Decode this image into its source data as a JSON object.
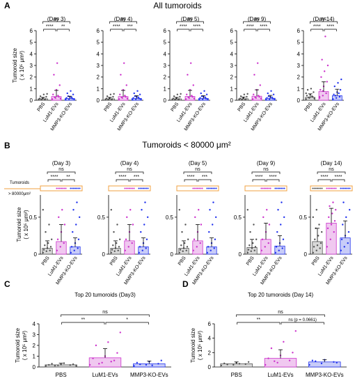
{
  "figure": {
    "panelA": {
      "letter": "A",
      "title": "All tumoroids"
    },
    "panelB": {
      "letter": "B",
      "title": "Tumoroids < 80000 μm²"
    },
    "panelC": {
      "letter": "C"
    },
    "panelD": {
      "letter": "D"
    }
  },
  "colors": {
    "PBS": "#555555",
    "LuM1-EVs": "#cc33cc",
    "MMP3-KO-EVs": "#2233ee",
    "tumoroid_band": "#f0a040"
  },
  "chart_data": [
    {
      "id": "A",
      "type": "scatter",
      "title": "(Day 3)",
      "ylabel": "Tumoroid size\n( x 10⁵ μm²)",
      "ylim": [
        0,
        6
      ],
      "yticks": [
        0,
        1,
        2,
        3,
        4,
        5,
        6
      ],
      "categories": [
        "PBS",
        "LuM1-EVs",
        "MMP3-KO-EVs"
      ],
      "bar_values": [
        0.12,
        0.32,
        0.15
      ],
      "error_upper": [
        0.25,
        0.85,
        0.35
      ],
      "points": [
        [
          0.05,
          0.1,
          0.1,
          0.15,
          0.2,
          0.3,
          0.35,
          0.5,
          0.55,
          0.05,
          0.08
        ],
        [
          0.1,
          0.2,
          0.3,
          0.5,
          0.9,
          1.3,
          2.2,
          3.2,
          0.15,
          0.25,
          0.4
        ],
        [
          0.05,
          0.1,
          0.15,
          0.2,
          0.3,
          0.5,
          0.6,
          0.8,
          0.1,
          0.35,
          0.25
        ]
      ],
      "brackets": [
        {
          "from": 0,
          "to": 1,
          "label": "****"
        },
        {
          "from": 1,
          "to": 2,
          "label": "**"
        },
        {
          "from": 0,
          "to": 2,
          "label": "ns"
        }
      ]
    },
    {
      "id": "A",
      "type": "scatter",
      "title": "(Day 4)",
      "ylim": [
        0,
        6
      ],
      "yticks": [
        0,
        1,
        2,
        3,
        4,
        5,
        6
      ],
      "categories": [
        "PBS",
        "LuM1-EVs",
        "MMP3-KO-EVs"
      ],
      "bar_values": [
        0.12,
        0.32,
        0.16
      ],
      "error_upper": [
        0.25,
        0.85,
        0.4
      ],
      "points": [
        [
          0.05,
          0.1,
          0.1,
          0.15,
          0.2,
          0.3,
          0.35,
          0.5,
          0.55,
          0.05,
          0.08
        ],
        [
          0.1,
          0.2,
          0.3,
          0.5,
          0.9,
          1.3,
          2.2,
          3.2,
          0.15,
          0.25,
          0.4
        ],
        [
          0.05,
          0.1,
          0.15,
          0.2,
          0.3,
          0.5,
          0.6,
          0.8,
          0.1,
          0.35,
          0.25
        ]
      ],
      "brackets": [
        {
          "from": 0,
          "to": 1,
          "label": "****"
        },
        {
          "from": 1,
          "to": 2,
          "label": "***"
        },
        {
          "from": 0,
          "to": 2,
          "label": "ns"
        }
      ]
    },
    {
      "id": "A",
      "type": "scatter",
      "title": "(Day 5)",
      "ylim": [
        0,
        6
      ],
      "yticks": [
        0,
        1,
        2,
        3,
        4,
        5,
        6
      ],
      "categories": [
        "PBS",
        "LuM1-EVs",
        "MMP3-KO-EVs"
      ],
      "bar_values": [
        0.12,
        0.33,
        0.16
      ],
      "error_upper": [
        0.25,
        0.85,
        0.4
      ],
      "points": [
        [
          0.05,
          0.1,
          0.1,
          0.15,
          0.2,
          0.3,
          0.35,
          0.5,
          0.55,
          0.05,
          0.08
        ],
        [
          0.1,
          0.2,
          0.3,
          0.5,
          0.9,
          1.3,
          2.2,
          3.2,
          0.15,
          0.25,
          0.4
        ],
        [
          0.05,
          0.1,
          0.15,
          0.2,
          0.3,
          0.5,
          0.6,
          0.8,
          0.1,
          0.35,
          0.25
        ]
      ],
      "brackets": [
        {
          "from": 0,
          "to": 1,
          "label": "****"
        },
        {
          "from": 1,
          "to": 2,
          "label": "****"
        },
        {
          "from": 0,
          "to": 2,
          "label": "ns"
        }
      ]
    },
    {
      "id": "A",
      "type": "scatter",
      "title": "(Day 9)",
      "ylim": [
        0,
        6
      ],
      "yticks": [
        0,
        1,
        2,
        3,
        4,
        5,
        6
      ],
      "categories": [
        "PBS",
        "LuM1-EVs",
        "MMP3-KO-EVs"
      ],
      "bar_values": [
        0.13,
        0.35,
        0.17
      ],
      "error_upper": [
        0.28,
        0.9,
        0.42
      ],
      "points": [
        [
          0.05,
          0.1,
          0.1,
          0.15,
          0.2,
          0.3,
          0.35,
          0.5,
          0.55,
          0.05,
          0.08
        ],
        [
          0.1,
          0.2,
          0.3,
          0.5,
          0.9,
          1.3,
          2.2,
          3.2,
          0.15,
          0.25,
          0.4
        ],
        [
          0.05,
          0.1,
          0.15,
          0.2,
          0.3,
          0.5,
          0.6,
          0.8,
          0.1,
          0.35,
          0.25
        ]
      ],
      "brackets": [
        {
          "from": 0,
          "to": 1,
          "label": "****"
        },
        {
          "from": 1,
          "to": 2,
          "label": "****"
        },
        {
          "from": 0,
          "to": 2,
          "label": "ns"
        }
      ]
    },
    {
      "id": "A",
      "type": "scatter",
      "title": "(Day 14)",
      "ylim": [
        0,
        6
      ],
      "yticks": [
        0,
        1,
        2,
        3,
        4,
        5,
        6
      ],
      "categories": [
        "PBS",
        "LuM1-EVs",
        "MMP3-KO-EVs"
      ],
      "bar_values": [
        0.25,
        0.75,
        0.4
      ],
      "error_upper": [
        0.55,
        1.6,
        0.95
      ],
      "points": [
        [
          0.1,
          0.2,
          0.3,
          0.4,
          0.5,
          0.7,
          0.9,
          1.0,
          0.15,
          0.25,
          0.35,
          0.6
        ],
        [
          0.2,
          0.4,
          0.6,
          0.9,
          1.2,
          1.6,
          2.0,
          2.5,
          3.0,
          3.5,
          5.5,
          0.3,
          0.8
        ],
        [
          0.1,
          0.2,
          0.3,
          0.5,
          0.7,
          0.9,
          1.2,
          1.5,
          1.8,
          0.4,
          0.6
        ]
      ],
      "brackets": [
        {
          "from": 0,
          "to": 1,
          "label": "****"
        },
        {
          "from": 1,
          "to": 2,
          "label": "****"
        },
        {
          "from": 0,
          "to": 2,
          "label": "ns"
        }
      ]
    },
    {
      "id": "B",
      "type": "scatter",
      "title": "(Day 3)",
      "ylabel": "Tumoroid size\n( x 10⁵ μm²)",
      "ylim": [
        0,
        0.8
      ],
      "yticks": [
        0,
        0.5
      ],
      "band_label": "Tumoroids\n> 80000μm²",
      "categories": [
        "PBS",
        "LuM1-EVs",
        "MMP3-KO-EVs"
      ],
      "bar_values": [
        0.08,
        0.17,
        0.1
      ],
      "error_upper": [
        0.18,
        0.4,
        0.22
      ],
      "points": [
        [
          0.02,
          0.04,
          0.05,
          0.06,
          0.08,
          0.1,
          0.12,
          0.15,
          0.2,
          0.3,
          0.4,
          0.6
        ],
        [
          0.05,
          0.1,
          0.15,
          0.2,
          0.3,
          0.4,
          0.5,
          0.6
        ],
        [
          0.02,
          0.05,
          0.08,
          0.1,
          0.15,
          0.2,
          0.3,
          0.4,
          0.5,
          0.6,
          0.7
        ]
      ],
      "above_band": [
        false,
        true,
        true
      ],
      "brackets": [
        {
          "from": 0,
          "to": 1,
          "label": "****"
        },
        {
          "from": 1,
          "to": 2,
          "label": "**"
        },
        {
          "from": 0,
          "to": 2,
          "label": "ns"
        }
      ]
    },
    {
      "id": "B",
      "type": "scatter",
      "title": "(Day 4)",
      "ylim": [
        0,
        0.8
      ],
      "yticks": [
        0,
        0.5
      ],
      "categories": [
        "PBS",
        "LuM1-EVs",
        "MMP3-KO-EVs"
      ],
      "bar_values": [
        0.08,
        0.18,
        0.1
      ],
      "error_upper": [
        0.18,
        0.4,
        0.22
      ],
      "points": [
        [
          0.02,
          0.04,
          0.05,
          0.06,
          0.08,
          0.1,
          0.12,
          0.15,
          0.2,
          0.3,
          0.4,
          0.6
        ],
        [
          0.05,
          0.1,
          0.15,
          0.2,
          0.3,
          0.4,
          0.5,
          0.6
        ],
        [
          0.02,
          0.05,
          0.08,
          0.1,
          0.15,
          0.2,
          0.3,
          0.4,
          0.5,
          0.6,
          0.7
        ]
      ],
      "above_band": [
        false,
        true,
        true
      ],
      "brackets": [
        {
          "from": 0,
          "to": 1,
          "label": "****"
        },
        {
          "from": 1,
          "to": 2,
          "label": "***"
        },
        {
          "from": 0,
          "to": 2,
          "label": "ns"
        }
      ]
    },
    {
      "id": "B",
      "type": "scatter",
      "title": "(Day 5)",
      "ylim": [
        0,
        0.8
      ],
      "yticks": [
        0,
        0.5
      ],
      "categories": [
        "PBS",
        "LuM1-EVs",
        "MMP3-KO-EVs"
      ],
      "bar_values": [
        0.08,
        0.18,
        0.1
      ],
      "error_upper": [
        0.18,
        0.4,
        0.22
      ],
      "points": [
        [
          0.02,
          0.04,
          0.05,
          0.06,
          0.08,
          0.1,
          0.12,
          0.15,
          0.2,
          0.3,
          0.4,
          0.6
        ],
        [
          0.05,
          0.1,
          0.15,
          0.2,
          0.3,
          0.4,
          0.5,
          0.6
        ],
        [
          0.02,
          0.05,
          0.08,
          0.1,
          0.15,
          0.2,
          0.3,
          0.4,
          0.5,
          0.6,
          0.7
        ]
      ],
      "above_band": [
        false,
        true,
        true
      ],
      "brackets": [
        {
          "from": 0,
          "to": 1,
          "label": "****"
        },
        {
          "from": 1,
          "to": 2,
          "label": "***"
        },
        {
          "from": 0,
          "to": 2,
          "label": "ns"
        }
      ]
    },
    {
      "id": "B",
      "type": "scatter",
      "title": "(Day 9)",
      "ylim": [
        0,
        0.8
      ],
      "yticks": [
        0,
        0.5
      ],
      "categories": [
        "PBS",
        "LuM1-EVs",
        "MMP3-KO-EVs"
      ],
      "bar_values": [
        0.09,
        0.2,
        0.11
      ],
      "error_upper": [
        0.2,
        0.42,
        0.25
      ],
      "points": [
        [
          0.02,
          0.04,
          0.05,
          0.06,
          0.08,
          0.1,
          0.12,
          0.15,
          0.2,
          0.3,
          0.4,
          0.6
        ],
        [
          0.05,
          0.1,
          0.15,
          0.2,
          0.3,
          0.4,
          0.5,
          0.6
        ],
        [
          0.02,
          0.05,
          0.08,
          0.1,
          0.15,
          0.2,
          0.3,
          0.4,
          0.5,
          0.6,
          0.7
        ]
      ],
      "above_band": [
        false,
        true,
        true
      ],
      "brackets": [
        {
          "from": 0,
          "to": 1,
          "label": "****"
        },
        {
          "from": 1,
          "to": 2,
          "label": "****"
        },
        {
          "from": 0,
          "to": 2,
          "label": "ns"
        }
      ]
    },
    {
      "id": "B",
      "type": "scatter",
      "title": "(Day 14)",
      "ylim": [
        0,
        0.8
      ],
      "yticks": [
        0,
        0.5
      ],
      "categories": [
        "PBS",
        "LuM1-EVs",
        "MMP3-KO-EVs"
      ],
      "bar_values": [
        0.17,
        0.42,
        0.22
      ],
      "error_upper": [
        0.35,
        0.62,
        0.45
      ],
      "points": [
        [
          0.02,
          0.05,
          0.08,
          0.1,
          0.12,
          0.15,
          0.2,
          0.25,
          0.3,
          0.35,
          0.4,
          0.5,
          0.6
        ],
        [
          0.1,
          0.2,
          0.3,
          0.35,
          0.4,
          0.45,
          0.5,
          0.55,
          0.6,
          0.65,
          0.7
        ],
        [
          0.05,
          0.1,
          0.15,
          0.2,
          0.25,
          0.3,
          0.4,
          0.5,
          0.6,
          0.7
        ]
      ],
      "above_band": [
        true,
        true,
        true
      ],
      "brackets": [
        {
          "from": 0,
          "to": 1,
          "label": "****"
        },
        {
          "from": 1,
          "to": 2,
          "label": "****"
        },
        {
          "from": 0,
          "to": 2,
          "label": "ns"
        }
      ]
    },
    {
      "id": "C",
      "type": "scatter",
      "title": "Top 20 tumoroids (Day3)",
      "ylabel": "Tumoroid size\n( x 10⁵ μm²)",
      "ylim": [
        0,
        4
      ],
      "yticks": [
        0,
        1,
        2,
        3,
        4
      ],
      "categories": [
        "PBS",
        "LuM1-EVs",
        "MMP3-KO-EVs"
      ],
      "bar_values": [
        0.2,
        0.85,
        0.3
      ],
      "error_upper": [
        0.35,
        1.7,
        0.55
      ],
      "points": [
        [
          0.1,
          0.15,
          0.18,
          0.2,
          0.22,
          0.25,
          0.3,
          0.35,
          0.1,
          0.12
        ],
        [
          0.2,
          0.4,
          0.6,
          0.8,
          1.0,
          1.3,
          2.0,
          2.3,
          3.2,
          0.3,
          0.5
        ],
        [
          0.1,
          0.2,
          0.3,
          0.4,
          0.5,
          0.6,
          0.25,
          0.15
        ]
      ],
      "brackets": [
        {
          "from": 0,
          "to": 1,
          "label": "**"
        },
        {
          "from": 1,
          "to": 2,
          "label": "*"
        },
        {
          "from": 0,
          "to": 2,
          "label": "ns"
        }
      ]
    },
    {
      "id": "D",
      "type": "scatter",
      "title": "Top 20 tumoroids (Day 14)",
      "ylabel": "Tumoroid size\n( x 10⁵ μm²)",
      "ylim": [
        0,
        6
      ],
      "yticks": [
        0,
        2,
        4,
        6
      ],
      "categories": [
        "PBS",
        "LuM1-EVs",
        "MMP3-KO-EVs"
      ],
      "bar_values": [
        0.45,
        1.2,
        0.7
      ],
      "error_upper": [
        0.7,
        2.4,
        1.0
      ],
      "points": [
        [
          0.2,
          0.3,
          0.4,
          0.5,
          0.6,
          0.7,
          0.35,
          0.45
        ],
        [
          0.3,
          0.6,
          0.9,
          1.2,
          1.6,
          2.0,
          2.6,
          3.5,
          5.0,
          0.8
        ],
        [
          0.3,
          0.5,
          0.7,
          0.9,
          1.0,
          0.6,
          0.8
        ]
      ],
      "brackets": [
        {
          "from": 0,
          "to": 1,
          "label": "**"
        },
        {
          "from": 1,
          "to": 2,
          "label": "ns (p = 0.0661)"
        },
        {
          "from": 0,
          "to": 2,
          "label": "ns"
        }
      ]
    }
  ]
}
